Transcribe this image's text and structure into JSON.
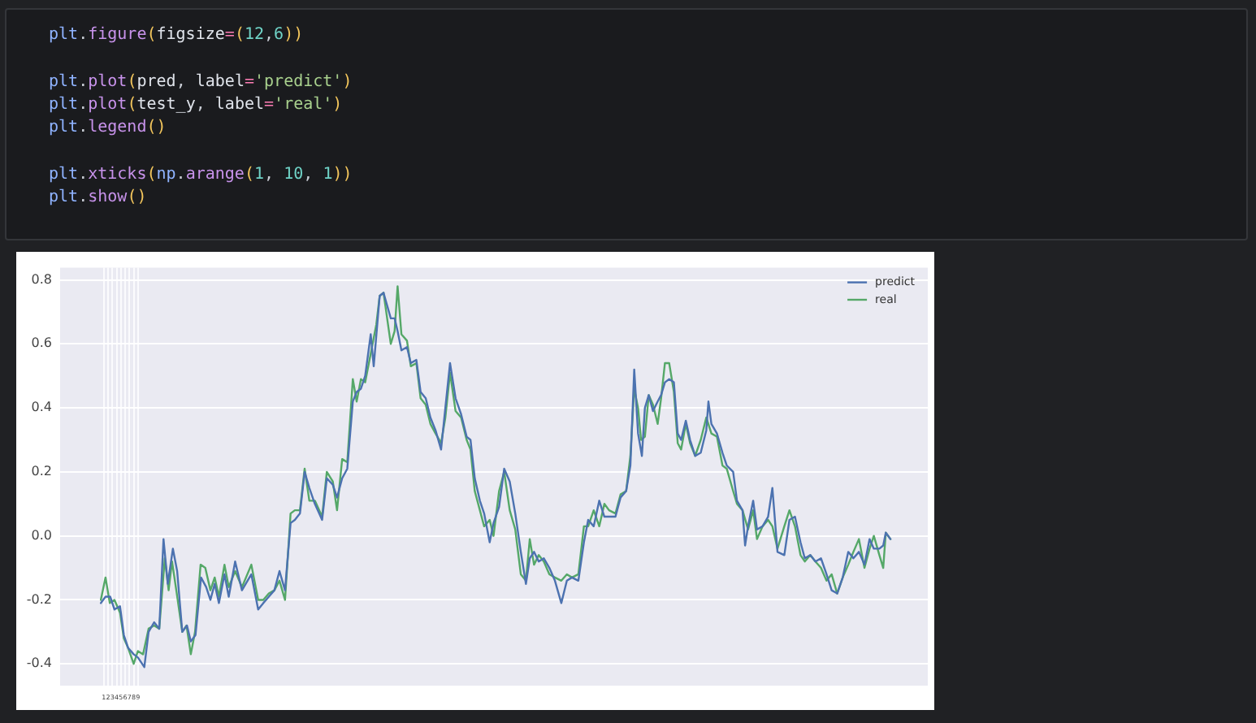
{
  "chart_data": {
    "type": "line",
    "annotations": [
      "plt.figure(figsize=(12,6))",
      "plt.plot(pred, label='predict')",
      "plt.plot(test_y, label='real')",
      "plt.legend()",
      "plt.xticks(np.arange(1, 10, 1))",
      "plt.show()"
    ],
    "xlim": [
      -9.25,
      194.25
    ],
    "xticks": [
      1,
      2,
      3,
      4,
      5,
      6,
      7,
      8,
      9
    ],
    "ylim": [
      -0.468,
      0.838
    ],
    "yticks": [
      -0.4,
      -0.2,
      {
        "value": 0,
        "label": "0.0"
      },
      0.2,
      0.4,
      0.6,
      0.8
    ],
    "grid": true,
    "legend": "top right",
    "marker": "none",
    "line_style": "solid",
    "series": [
      {
        "name": "predict",
        "color": "#4c72b0",
        "x": [
          0.3,
          1.4,
          2.5,
          3.5,
          4.8,
          5.7,
          6.7,
          8,
          9,
          10.5,
          11.5,
          12.8,
          14,
          15,
          16,
          17.2,
          18.2,
          19.4,
          20.5,
          21.4,
          22.5,
          23.8,
          25,
          26,
          27,
          28,
          29.3,
          30.3,
          31.8,
          33.4,
          35.6,
          37.2,
          38.4,
          39.7,
          41,
          42.2,
          43.5,
          44.8,
          45.8,
          47,
          48.1,
          49.2,
          50.5,
          52.2,
          53.3,
          54.7,
          55.7,
          56.9,
          58.1,
          59.4,
          60.3,
          61.3,
          62.3,
          63.6,
          64.3,
          65.7,
          66.6,
          68.3,
          69.2,
          69.9,
          70.8,
          72.1,
          73,
          74.3,
          75.3,
          76.5,
          77.6,
          78.8,
          80.1,
          81.1,
          82.2,
          83.5,
          84.8,
          86.1,
          87,
          88,
          89.2,
          90.2,
          91.5,
          92.4,
          93.7,
          94.9,
          96.2,
          97.5,
          98.8,
          100,
          100.9,
          101.9,
          103,
          104.2,
          105.5,
          106.8,
          108.3,
          109.6,
          110.8,
          112.3,
          113.6,
          114.6,
          115.9,
          117.2,
          118.4,
          119.5,
          121,
          122.2,
          123.5,
          124.5,
          125.4,
          126.3,
          127.2,
          127.9,
          128.8,
          129.8,
          130.9,
          131.7,
          132.6,
          133.6,
          134.7,
          135.6,
          136.4,
          137.5,
          138.5,
          139.7,
          141,
          142.3,
          142.8,
          143.5,
          144.8,
          146.1,
          147.1,
          148.6,
          149.5,
          150.8,
          151.4,
          152.1,
          153.3,
          154.2,
          155.5,
          156.8,
          157.8,
          159,
          160.6,
          161.8,
          163.1,
          164.4,
          165.4,
          166.7,
          167.9,
          169.2,
          170.5,
          171.7,
          173,
          174.3,
          175.6,
          176.8,
          178.1,
          179.4,
          180.6,
          181.6,
          182.9,
          183.8,
          184.4,
          185.5
        ],
        "values": [
          -0.21,
          -0.19,
          -0.19,
          -0.23,
          -0.22,
          -0.31,
          -0.35,
          -0.37,
          -0.38,
          -0.41,
          -0.3,
          -0.27,
          -0.29,
          -0.01,
          -0.15,
          -0.04,
          -0.11,
          -0.3,
          -0.28,
          -0.33,
          -0.31,
          -0.13,
          -0.16,
          -0.2,
          -0.15,
          -0.21,
          -0.12,
          -0.19,
          -0.08,
          -0.17,
          -0.12,
          -0.23,
          -0.21,
          -0.19,
          -0.17,
          -0.11,
          -0.17,
          0.04,
          0.05,
          0.07,
          0.2,
          0.15,
          0.1,
          0.05,
          0.18,
          0.16,
          0.12,
          0.18,
          0.21,
          0.42,
          0.45,
          0.46,
          0.5,
          0.63,
          0.53,
          0.75,
          0.76,
          0.68,
          0.68,
          0.64,
          0.58,
          0.59,
          0.54,
          0.55,
          0.45,
          0.43,
          0.37,
          0.33,
          0.27,
          0.4,
          0.54,
          0.43,
          0.38,
          0.31,
          0.3,
          0.18,
          0.11,
          0.07,
          -0.02,
          0.04,
          0.09,
          0.21,
          0.17,
          0.07,
          -0.05,
          -0.15,
          -0.07,
          -0.05,
          -0.08,
          -0.07,
          -0.1,
          -0.14,
          -0.21,
          -0.14,
          -0.13,
          -0.14,
          -0.02,
          0.05,
          0.03,
          0.11,
          0.06,
          0.06,
          0.06,
          0.12,
          0.14,
          0.22,
          0.52,
          0.32,
          0.25,
          0.4,
          0.44,
          0.39,
          0.42,
          0.44,
          0.48,
          0.49,
          0.48,
          0.32,
          0.3,
          0.36,
          0.3,
          0.25,
          0.26,
          0.33,
          0.42,
          0.35,
          0.32,
          0.26,
          0.22,
          0.2,
          0.11,
          0.08,
          -0.03,
          0.03,
          0.11,
          0.02,
          0.03,
          0.06,
          0.15,
          -0.05,
          -0.06,
          0.05,
          0.06,
          -0.02,
          -0.07,
          -0.06,
          -0.08,
          -0.07,
          -0.12,
          -0.17,
          -0.18,
          -0.13,
          -0.05,
          -0.07,
          -0.05,
          -0.09,
          -0.01,
          -0.04,
          -0.04,
          -0.03,
          0.01,
          -0.01
        ]
      },
      {
        "name": "real",
        "color": "#55a868",
        "x": [
          0.3,
          1.4,
          2.4,
          3.5,
          4.8,
          5.7,
          6.7,
          8,
          9,
          10.2,
          11.5,
          12.8,
          14,
          15.3,
          16.2,
          17,
          18,
          19.4,
          20.4,
          21.4,
          22.4,
          23.7,
          24.8,
          26,
          27,
          28,
          29.3,
          30.3,
          31.8,
          33.4,
          35.6,
          37.2,
          38.4,
          39.7,
          41,
          42.2,
          43.5,
          44.8,
          45.8,
          47,
          48.1,
          49.2,
          50.5,
          52.2,
          53.3,
          54.7,
          55.7,
          56.9,
          58.1,
          59.4,
          60.3,
          61.3,
          62.3,
          63.6,
          64.9,
          65.7,
          66.6,
          68.3,
          69.2,
          69.9,
          70.8,
          72.1,
          73,
          74.3,
          75.3,
          76.5,
          77.6,
          78.8,
          80.1,
          81.1,
          82.2,
          83.5,
          84.8,
          86.1,
          87,
          88,
          89.2,
          90.2,
          91.5,
          92.4,
          93.7,
          94.9,
          96.2,
          97.5,
          98.8,
          100,
          100.9,
          101.9,
          103,
          104.2,
          105.5,
          106.8,
          108.3,
          109.6,
          110.8,
          112.3,
          113.6,
          114.6,
          115.9,
          117.2,
          118.4,
          119.5,
          121,
          122.2,
          123.5,
          124.5,
          125.4,
          126.3,
          127,
          127.9,
          128.8,
          129.8,
          130.9,
          131.7,
          132.6,
          133.6,
          134.7,
          135.6,
          136.4,
          137.5,
          138.5,
          139.7,
          141,
          142.3,
          143.5,
          144.8,
          146.1,
          147.1,
          148.6,
          149.5,
          150.8,
          152.1,
          153.3,
          154.2,
          155.5,
          156.8,
          157.8,
          159,
          160.6,
          161.8,
          163.1,
          164.4,
          165.4,
          166.7,
          167.9,
          169.2,
          170.5,
          171.7,
          173,
          174.3,
          175.6,
          176.8,
          178.1,
          179.4,
          180.6,
          181.6,
          182.9,
          183.8,
          184.4,
          185.5
        ],
        "values": [
          -0.2,
          -0.13,
          -0.21,
          -0.2,
          -0.24,
          -0.32,
          -0.35,
          -0.4,
          -0.36,
          -0.37,
          -0.29,
          -0.28,
          -0.29,
          -0.07,
          -0.17,
          -0.08,
          -0.17,
          -0.3,
          -0.28,
          -0.37,
          -0.3,
          -0.09,
          -0.1,
          -0.17,
          -0.13,
          -0.19,
          -0.09,
          -0.16,
          -0.11,
          -0.16,
          -0.09,
          -0.2,
          -0.2,
          -0.18,
          -0.17,
          -0.14,
          -0.2,
          0.07,
          0.08,
          0.08,
          0.21,
          0.11,
          0.11,
          0.06,
          0.2,
          0.17,
          0.08,
          0.24,
          0.23,
          0.49,
          0.42,
          0.49,
          0.48,
          0.57,
          0.66,
          0.75,
          0.76,
          0.6,
          0.64,
          0.78,
          0.63,
          0.61,
          0.53,
          0.54,
          0.43,
          0.41,
          0.35,
          0.32,
          0.29,
          0.37,
          0.51,
          0.39,
          0.37,
          0.3,
          0.27,
          0.14,
          0.08,
          0.03,
          0.05,
          0.0,
          0.14,
          0.2,
          0.08,
          0.02,
          -0.12,
          -0.14,
          -0.01,
          -0.09,
          -0.06,
          -0.08,
          -0.12,
          -0.13,
          -0.14,
          -0.12,
          -0.13,
          -0.12,
          0.03,
          0.03,
          0.08,
          0.03,
          0.1,
          0.08,
          0.07,
          0.13,
          0.14,
          0.25,
          0.46,
          0.4,
          0.3,
          0.31,
          0.44,
          0.41,
          0.35,
          0.43,
          0.54,
          0.54,
          0.45,
          0.29,
          0.27,
          0.35,
          0.29,
          0.25,
          0.3,
          0.37,
          0.32,
          0.31,
          0.22,
          0.21,
          0.14,
          0.1,
          0.08,
          0.02,
          0.08,
          -0.01,
          0.03,
          0.05,
          0.03,
          -0.04,
          0.03,
          0.08,
          0.03,
          -0.06,
          -0.08,
          -0.06,
          -0.08,
          -0.1,
          -0.14,
          -0.12,
          -0.18,
          -0.13,
          -0.09,
          -0.05,
          -0.01,
          -0.1,
          -0.04,
          0.0,
          -0.06,
          -0.1,
          0.01,
          -0.01
        ]
      }
    ]
  }
}
